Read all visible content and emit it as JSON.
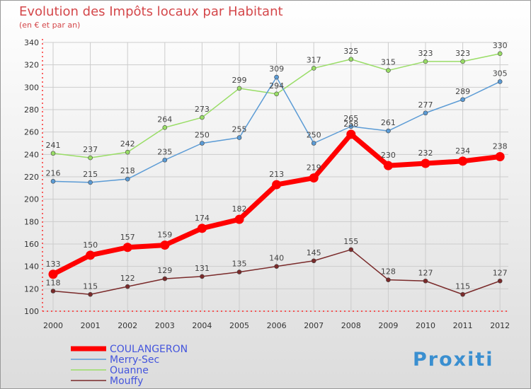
{
  "chart_data": {
    "type": "line",
    "title": "Evolution des Impôts locaux par Habitant",
    "subtitle": "(en € et par an)",
    "logo_text": "Proxiti",
    "x": [
      "2000",
      "2001",
      "2002",
      "2003",
      "2004",
      "2005",
      "2006",
      "2007",
      "2008",
      "2009",
      "2010",
      "2011",
      "2012"
    ],
    "ylim": [
      100,
      340
    ],
    "yticks": [
      100,
      120,
      140,
      160,
      180,
      200,
      220,
      240,
      260,
      280,
      300,
      320,
      340
    ],
    "grid": true,
    "legend_position": "bottom-left",
    "series": [
      {
        "name": "COULANGERON",
        "color": "#ff0000",
        "values": [
          133,
          150,
          157,
          159,
          174,
          182,
          213,
          219,
          258,
          230,
          232,
          234,
          238
        ]
      },
      {
        "name": "Merry-Sec",
        "color": "#5b9bd5",
        "values": [
          216,
          215,
          218,
          235,
          250,
          255,
          309,
          250,
          265,
          261,
          277,
          289,
          305
        ]
      },
      {
        "name": "Ouanne",
        "color": "#99dd66",
        "values": [
          241,
          237,
          242,
          264,
          273,
          299,
          294,
          317,
          325,
          315,
          323,
          323,
          330
        ]
      },
      {
        "name": "Mouffy",
        "color": "#7a2a2a",
        "values": [
          118,
          115,
          122,
          129,
          131,
          135,
          140,
          145,
          155,
          128,
          127,
          115,
          127
        ]
      }
    ],
    "colors": {
      "title": "#d4474a",
      "background_top": "#ffffff",
      "background_bottom": "#dcdcdc",
      "grid": "#cccccc",
      "axis_red": "#ff0000"
    }
  }
}
